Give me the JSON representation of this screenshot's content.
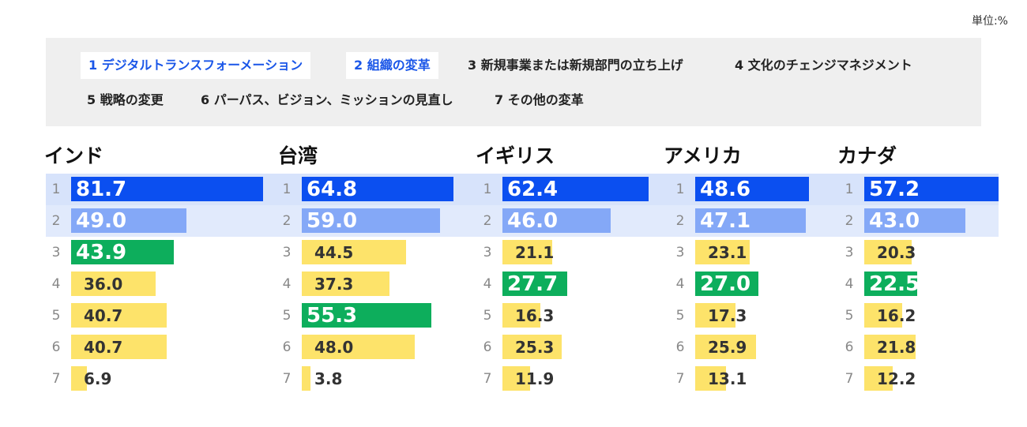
{
  "unit_label": "単位:%",
  "legend": [
    {
      "label": "1 デジタルトランスフォーメーション",
      "highlight": true
    },
    {
      "label": "2 組織の変革",
      "highlight": true
    },
    {
      "label": "3 新規事業または新規部門の立ち上げ",
      "highlight": false
    },
    {
      "label": "4 文化のチェンジマネジメント",
      "highlight": false
    },
    {
      "label": "5 戦略の変更",
      "highlight": false
    },
    {
      "label": "6 パーパス、ビジョン、ミッションの見直し",
      "highlight": false
    },
    {
      "label": "7 その他の変革",
      "highlight": false
    }
  ],
  "colors": {
    "rank1": "#0b4ff0",
    "rank2": "#84a8f7",
    "top_other": "#0dae5c",
    "other": "#fde36a",
    "band1": "#d7e3fb",
    "band2": "#e1eafc"
  },
  "chart_data": {
    "type": "bar",
    "orientation": "horizontal",
    "unit": "%",
    "categories": [
      "1",
      "2",
      "3",
      "4",
      "5",
      "6",
      "7"
    ],
    "series": [
      {
        "name": "インド",
        "values": [
          81.7,
          49.0,
          43.9,
          36.0,
          40.7,
          40.7,
          6.9
        ],
        "labels": [
          "81.7",
          "49.0",
          "43.9",
          "36.0",
          "40.7",
          "40.7",
          "6.9"
        ],
        "top_other_index": 2
      },
      {
        "name": "台湾",
        "values": [
          64.8,
          59.0,
          44.5,
          37.3,
          55.3,
          48.0,
          3.8
        ],
        "labels": [
          "64.8",
          "59.0",
          "44.5",
          "37.3",
          "55.3",
          "48.0",
          "3.8"
        ],
        "top_other_index": 4
      },
      {
        "name": "イギリス",
        "values": [
          62.4,
          46.0,
          21.1,
          27.7,
          16.3,
          25.3,
          11.9
        ],
        "labels": [
          "62.4",
          "46.0",
          "21.1",
          "27.7",
          "16.3",
          "25.3",
          "11.9"
        ],
        "top_other_index": 3
      },
      {
        "name": "アメリカ",
        "values": [
          48.6,
          47.1,
          23.1,
          27.0,
          17.3,
          25.9,
          13.1
        ],
        "labels": [
          "48.6",
          "47.1",
          "23.1",
          "27.0",
          "17.3",
          "25.9",
          "13.1"
        ],
        "top_other_index": 3
      },
      {
        "name": "カナダ",
        "values": [
          57.2,
          43.0,
          20.3,
          22.5,
          16.2,
          21.8,
          12.2
        ],
        "labels": [
          "57.2",
          "43.0",
          "20.3",
          "22.5",
          "16.2",
          "21.8",
          "12.2"
        ],
        "top_other_index": 3
      }
    ]
  }
}
